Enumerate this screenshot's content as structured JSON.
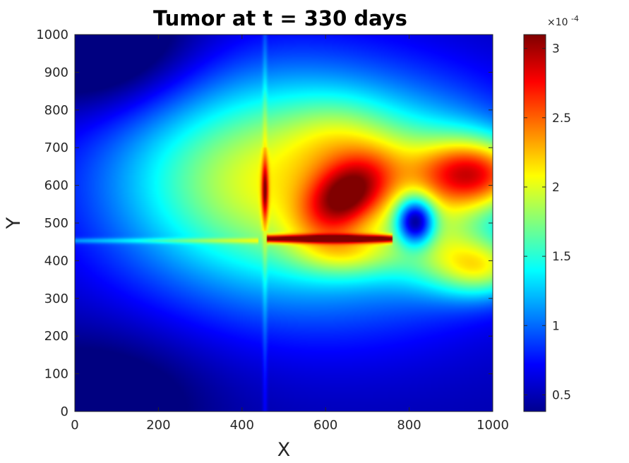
{
  "chart_data": {
    "type": "heatmap",
    "title": "Tumor at t = 330 days",
    "xlabel": "X",
    "ylabel": "Y",
    "xlim": [
      0,
      1000
    ],
    "ylim": [
      0,
      1000
    ],
    "xticks": [
      0,
      200,
      400,
      600,
      800,
      1000
    ],
    "yticks": [
      0,
      100,
      200,
      300,
      400,
      500,
      600,
      700,
      800,
      900,
      1000
    ],
    "colormap": "jet",
    "colorbar": {
      "range": [
        0.38,
        3.1
      ],
      "ticks": [
        0.5,
        1,
        1.5,
        2,
        2.5,
        3
      ],
      "tick_labels": [
        "0.5",
        "1",
        "1.5",
        "2",
        "2.5",
        "3"
      ],
      "exponent_label": "×10",
      "exponent_power": "-4"
    },
    "features": [
      {
        "x": 650,
        "y": 560,
        "value": 3.05
      },
      {
        "x": 960,
        "y": 630,
        "value": 2.85
      },
      {
        "x": 980,
        "y": 380,
        "value": 2.45
      },
      {
        "x": 650,
        "y": 455,
        "value": 2.9
      },
      {
        "x": 455,
        "y": 580,
        "value": 2.7
      },
      {
        "x": 820,
        "y": 510,
        "value": 0.9
      },
      {
        "x": 40,
        "y": 40,
        "value": 0.4
      },
      {
        "x": 40,
        "y": 950,
        "value": 0.45
      }
    ]
  }
}
